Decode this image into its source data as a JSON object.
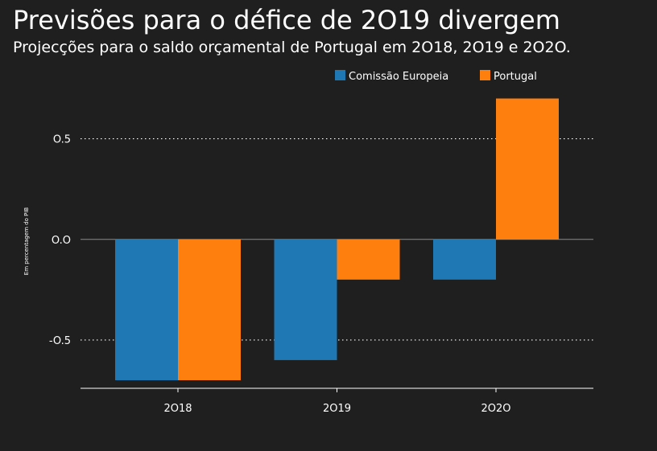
{
  "header": {
    "title": "Previsões para o défice de 2O19 divergem",
    "subtitle": "Projecções para o saldo orçamental de Portugal em 2O18, 2O19 e 2O2O."
  },
  "colors": {
    "background": "#1f1f1f",
    "series_ce": "#1f77b4",
    "series_pt": "#ff7f0e",
    "text": "#ffffff",
    "grid": "#ffffff"
  },
  "chart_data": {
    "type": "bar",
    "title": "Previsões para o défice de 2O19 divergem",
    "subtitle": "Projecções para o saldo orçamental de Portugal em 2O18, 2O19 e 2O2O.",
    "xlabel": "",
    "ylabel": "Em percentagem do PIB",
    "categories": [
      "2O18",
      "2O19",
      "2O2O"
    ],
    "series": [
      {
        "name": "Comissão Europeia",
        "values": [
          -0.7,
          -0.6,
          -0.2
        ]
      },
      {
        "name": "Portugal",
        "values": [
          -0.7,
          -0.2,
          0.7
        ]
      }
    ],
    "ylim": [
      -0.74,
      0.75
    ],
    "yticks": [
      0.5,
      0.0,
      -0.5
    ],
    "ytick_labels": [
      "O.5",
      "O.O",
      "-O.5"
    ],
    "grid": "dotted horizontal",
    "legend_position": "top-right"
  }
}
